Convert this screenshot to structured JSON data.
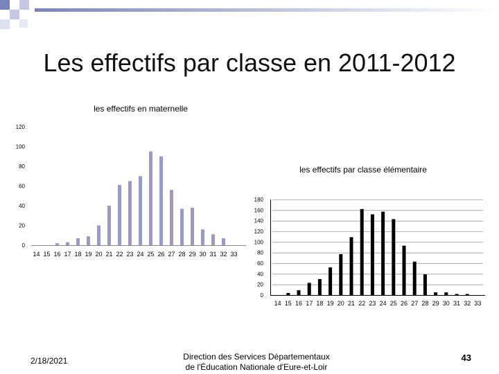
{
  "slide": {
    "title": "Les effectifs par classe en 2011-2012",
    "footer_date": "2/18/2021",
    "footer_line1": "Direction des Services Départementaux",
    "footer_line2": "de l'Éducation Nationale d'Eure-et-Loir",
    "page_number": "43"
  },
  "colors": {
    "maternelle": "#9a9ac8",
    "elementaire": "#000000",
    "header_blue": "#7b84b8"
  },
  "chart_data": [
    {
      "type": "bar",
      "title": "les effectifs en maternelle",
      "categories": [
        "14",
        "15",
        "16",
        "17",
        "18",
        "19",
        "20",
        "21",
        "22",
        "23",
        "24",
        "25",
        "26",
        "27",
        "28",
        "29",
        "30",
        "31",
        "32",
        "33"
      ],
      "values": [
        0,
        0,
        2,
        3,
        7,
        9,
        20,
        40,
        61,
        65,
        70,
        95,
        90,
        56,
        37,
        38,
        16,
        11,
        7,
        0
      ],
      "ylim": [
        0,
        120
      ],
      "yticks": [
        0,
        20,
        40,
        60,
        80,
        100,
        120
      ],
      "grid": false
    },
    {
      "type": "bar",
      "title": "les effectifs par classe élémentaire",
      "categories": [
        "14",
        "15",
        "16",
        "17",
        "18",
        "19",
        "20",
        "21",
        "22",
        "23",
        "24",
        "25",
        "26",
        "27",
        "28",
        "29",
        "30",
        "31",
        "32",
        "33"
      ],
      "values": [
        0,
        4,
        9,
        23,
        30,
        52,
        77,
        109,
        162,
        152,
        157,
        143,
        93,
        63,
        39,
        5,
        5,
        2,
        2,
        0
      ],
      "ylim": [
        0,
        180
      ],
      "yticks": [
        0,
        20,
        40,
        60,
        80,
        100,
        120,
        140,
        160,
        180
      ],
      "grid": true
    }
  ]
}
